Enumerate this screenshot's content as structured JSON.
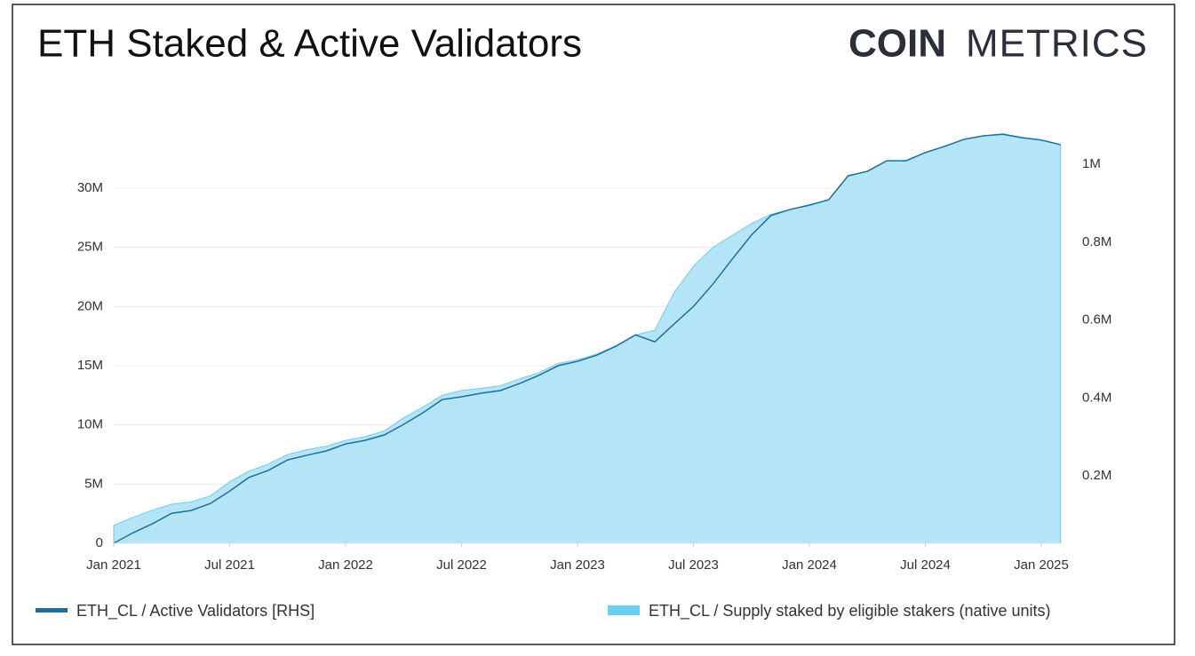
{
  "chart_data": {
    "type": "combo",
    "title": "ETH Staked & Active Validators",
    "logo_bold": "COIN",
    "logo_light": "METRICS",
    "x": [
      "2021-01",
      "2021-02",
      "2021-03",
      "2021-04",
      "2021-05",
      "2021-06",
      "2021-07",
      "2021-08",
      "2021-09",
      "2021-10",
      "2021-11",
      "2021-12",
      "2022-01",
      "2022-02",
      "2022-03",
      "2022-04",
      "2022-05",
      "2022-06",
      "2022-07",
      "2022-08",
      "2022-09",
      "2022-10",
      "2022-11",
      "2022-12",
      "2023-01",
      "2023-02",
      "2023-03",
      "2023-04",
      "2023-05",
      "2023-06",
      "2023-07",
      "2023-08",
      "2023-09",
      "2023-10",
      "2023-11",
      "2023-12",
      "2024-01",
      "2024-02",
      "2024-03",
      "2024-04",
      "2024-05",
      "2024-06",
      "2024-07",
      "2024-08",
      "2024-09",
      "2024-10",
      "2024-11",
      "2024-12",
      "2025-01",
      "2025-02"
    ],
    "xlim": [
      "2021-01",
      "2025-02"
    ],
    "xticks": [
      {
        "value": "2021-01",
        "label": "Jan 2021"
      },
      {
        "value": "2021-07",
        "label": "Jul 2021"
      },
      {
        "value": "2022-01",
        "label": "Jan 2022"
      },
      {
        "value": "2022-07",
        "label": "Jul 2022"
      },
      {
        "value": "2023-01",
        "label": "Jan 2023"
      },
      {
        "value": "2023-07",
        "label": "Jul 2023"
      },
      {
        "value": "2024-01",
        "label": "Jan 2024"
      },
      {
        "value": "2024-07",
        "label": "Jul 2024"
      },
      {
        "value": "2025-01",
        "label": "Jan 2025"
      }
    ],
    "ylim": [
      0,
      35400000
    ],
    "yticks": [
      0,
      {
        "value": 5000000,
        "label": "5M"
      },
      {
        "value": 10000000,
        "label": "10M"
      },
      {
        "value": 15000000,
        "label": "15M"
      },
      {
        "value": 20000000,
        "label": "20M"
      },
      {
        "value": 25000000,
        "label": "25M"
      },
      {
        "value": 30000000,
        "label": "30M"
      }
    ],
    "y2lim": [
      27000,
      1102600
    ],
    "y2ticks": [
      {
        "value": 200000,
        "label": "0.2M"
      },
      {
        "value": 400000,
        "label": "0.4M"
      },
      {
        "value": 600000,
        "label": "0.6M"
      },
      {
        "value": 800000,
        "label": "0.8M"
      },
      {
        "value": 1000000,
        "label": "1M"
      }
    ],
    "grid": true,
    "series": [
      {
        "name": "ETH_CL / Active Validators [RHS]",
        "type": "line",
        "axis": "y2",
        "color": "#1f6f9a",
        "values": [
          27000,
          54000,
          77000,
          104000,
          111000,
          129000,
          161000,
          196000,
          214000,
          241000,
          253000,
          264000,
          282000,
          291000,
          305000,
          332000,
          362000,
          396000,
          403000,
          412000,
          419000,
          437000,
          458000,
          483000,
          494000,
          510000,
          533000,
          562000,
          544000,
          590000,
          635000,
          692000,
          756000,
          818000,
          868000,
          884000,
          895000,
          909000,
          970000,
          982000,
          1009000,
          1009000,
          1030000,
          1046000,
          1064000,
          1073000,
          1077000,
          1068000,
          1062000,
          1050000
        ]
      },
      {
        "name": "ETH_CL / Supply staked by eligible stakers (native units)",
        "type": "area",
        "color": "#6dcff0",
        "values": [
          1500000,
          2200000,
          2800000,
          3300000,
          3500000,
          4000000,
          5200000,
          6100000,
          6700000,
          7500000,
          7900000,
          8200000,
          8700000,
          9000000,
          9500000,
          10600000,
          11500000,
          12500000,
          12900000,
          13100000,
          13300000,
          13900000,
          14400000,
          15200000,
          15500000,
          16000000,
          16700000,
          17600000,
          18000000,
          21200000,
          23400000,
          25000000,
          26000000,
          27000000,
          27800000,
          28200000,
          28600000,
          29000000,
          31100000,
          31400000,
          32300000,
          32300000,
          33000000,
          33500000,
          34100000,
          34400000,
          34600000,
          34300000,
          34100000,
          33700000
        ]
      }
    ]
  }
}
